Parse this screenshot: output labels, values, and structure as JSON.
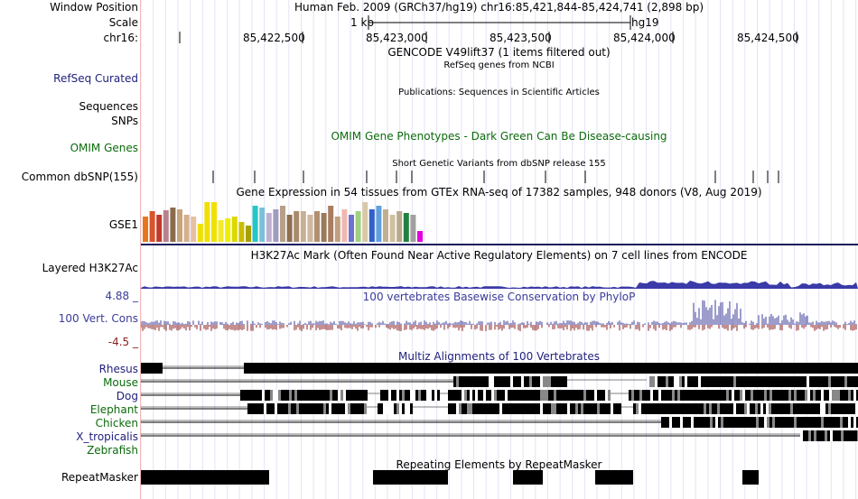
{
  "ruler": {
    "window_label": "Window Position",
    "window_text": "Human Feb. 2009 (GRCh37/hg19)   chr16:85,421,844-85,424,741 (2,898 bp)",
    "scale_label": "Scale",
    "scale_text": "1 kb",
    "assembly": "hg19",
    "chrom_label": "chr16:",
    "ticks": [
      "85,422,500",
      "85,423,000",
      "85,423,500",
      "85,424,000",
      "85,424,500"
    ]
  },
  "tracks": {
    "gencode_title": "GENCODE V49lift37 (1 items filtered out)",
    "refseq_title": "RefSeq genes from NCBI",
    "refseq_label": "RefSeq Curated",
    "pubs_title": "Publications: Sequences in Scientific Articles",
    "sequences_label": "Sequences",
    "snps_label": "SNPs",
    "omim_label": "OMIM Genes",
    "omim_title": "OMIM Gene Phenotypes - Dark Green Can Be Disease-causing",
    "dbsnp_title": "Short Genetic Variants from dbSNP release 155",
    "dbsnp_label": "Common dbSNP(155)",
    "gtex_title": "Gene Expression in 54 tissues from GTEx RNA-seq of 17382 samples, 948 donors (V8, Aug 2019)",
    "gtex_label": "GSE1",
    "h3k27_title": "H3K27Ac Mark (Often Found Near Active Regulatory Elements) on 7 cell lines from ENCODE",
    "h3k27_label": "Layered H3K27Ac",
    "cons_title": "100 vertebrates Basewise Conservation by PhyloP",
    "cons_label": "100 Vert. Cons",
    "cons_max": "4.88 _",
    "cons_min": "-4.5 _",
    "multiz_title": "Multiz Alignments of 100 Vertebrates",
    "species": [
      "Rhesus",
      "Mouse",
      "Dog",
      "Elephant",
      "Chicken",
      "X_tropicalis",
      "Zebrafish"
    ],
    "rmsk_title": "Repeating Elements by RepeatMasker",
    "rmsk_label": "RepeatMasker"
  },
  "colors": {
    "label_blue": "#1f1f7a",
    "label_green": "#0b6b0b",
    "cons_blue": "#3b3b9a",
    "cons_red": "#8b1f1f",
    "gridline": "#dcdcf4"
  }
}
